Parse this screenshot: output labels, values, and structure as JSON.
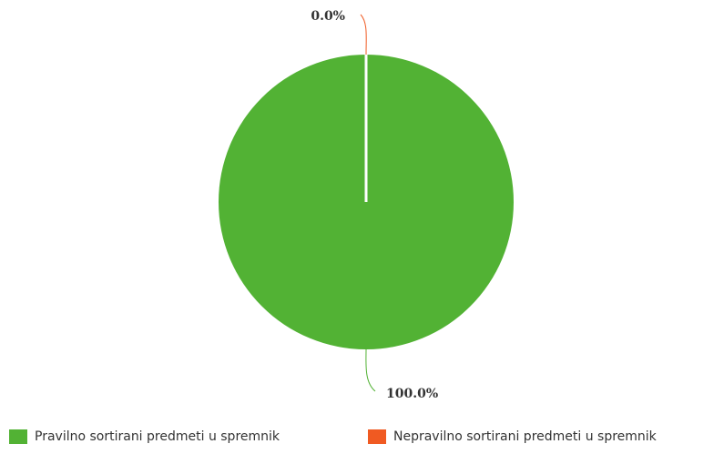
{
  "chart_data": {
    "type": "pie",
    "slices": [
      {
        "label": "Pravilno sortirani predmeti u spremnik",
        "value": 100.0,
        "display": "100.0%",
        "color": "#52b234"
      },
      {
        "label": "Nepravilno sortirani predmeti u spremnik",
        "value": 0.0,
        "display": "0.0%",
        "color": "#f05a22"
      }
    ],
    "legend_position": "bottom"
  }
}
